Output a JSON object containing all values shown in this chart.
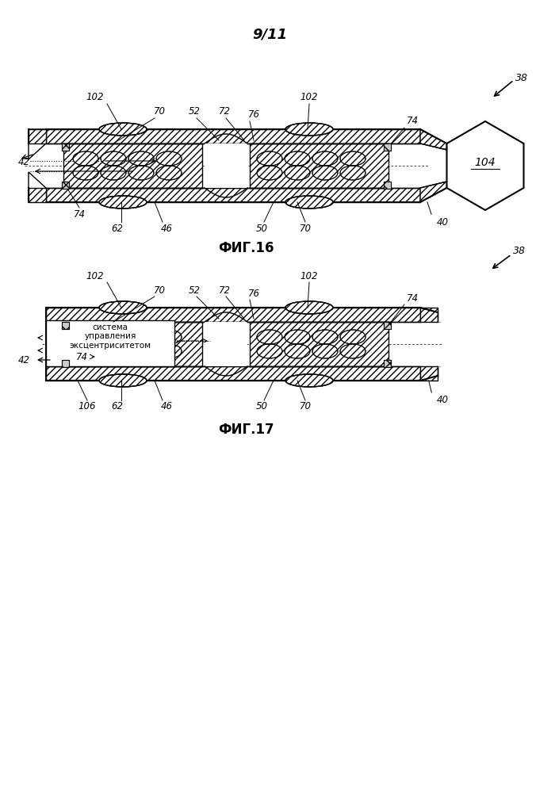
{
  "title": "9/11",
  "fig16_label": "ФИГ.16",
  "fig17_label": "ФИГ.17",
  "bg_color": "#ffffff",
  "line_color": "#000000",
  "ref_38": "38",
  "ref_40": "40",
  "ref_42": "42",
  "ref_46": "46",
  "ref_50": "50",
  "ref_52": "52",
  "ref_62": "62",
  "ref_70": "70",
  "ref_72": "72",
  "ref_74": "74",
  "ref_76": "76",
  "ref_102": "102",
  "ref_104": "104",
  "ref_106": "106",
  "box_text": "система\nуправления\nэксцентриситетом"
}
